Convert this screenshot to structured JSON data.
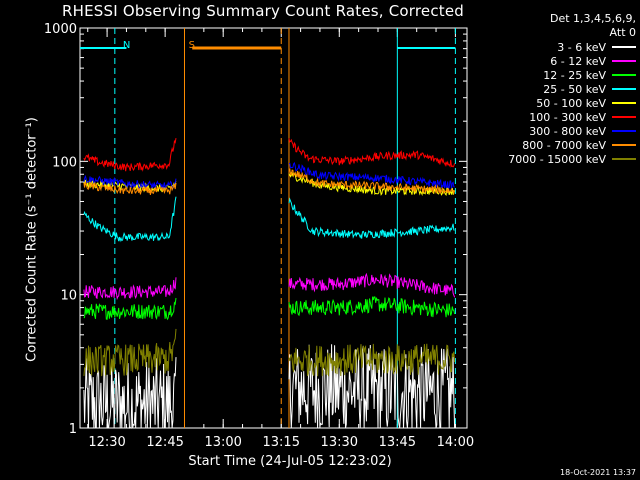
{
  "chart_data": {
    "type": "line",
    "title": "RHESSI Observing Summary Count Rates, Corrected",
    "xlabel": "Start Time (24-Jul-05 12:23:02)",
    "ylabel": "Corrected Count Rate (s⁻¹ detector⁻¹)",
    "yscale": "log",
    "ylim": [
      1,
      1000
    ],
    "xlim": [
      "12:23",
      "14:03"
    ],
    "x_ticks": [
      "12:30",
      "12:45",
      "13:00",
      "13:15",
      "13:30",
      "13:45",
      "14:00"
    ],
    "y_ticks": [
      "1",
      "10",
      "100",
      "1000"
    ],
    "legend_header": [
      "Det 1,3,4,5,6,9,",
      "Att 0"
    ],
    "legend_position": "top-right, outside plot",
    "timestamp": "18-Oct-2021 13:37",
    "flags": [
      {
        "label": "N",
        "color": "#00ffff",
        "x": "12:32"
      },
      {
        "label": "S",
        "color": "#ff8c00",
        "x": "12:49"
      }
    ],
    "flag_bars": [
      {
        "color": "#00ffff",
        "start": "12:23",
        "end": "12:35"
      },
      {
        "color": "#ff8c00",
        "start": "12:52",
        "end": "13:15"
      },
      {
        "color": "#00ffff",
        "start": "13:45",
        "end": "14:00"
      }
    ],
    "vlines": [
      {
        "x": "12:32",
        "color": "#00ffff",
        "dashed": true
      },
      {
        "x": "12:50",
        "color": "#ff8c00",
        "dashed": false
      },
      {
        "x": "13:15",
        "color": "#ff8c00",
        "dashed": true
      },
      {
        "x": "13:17",
        "color": "#ff8c00",
        "dashed": false
      },
      {
        "x": "13:45",
        "color": "#00ffff",
        "dashed": false
      },
      {
        "x": "14:00",
        "color": "#00ffff",
        "dashed": true
      }
    ],
    "data_gap": [
      "12:48",
      "13:17"
    ],
    "series": [
      {
        "name": "3 - 6 keV",
        "color": "#ffffff",
        "x": [
          "12:24",
          "12:46",
          "13:17",
          "14:00"
        ],
        "y": [
          1.5,
          1.5,
          2.0,
          1.8
        ]
      },
      {
        "name": "6 - 12 keV",
        "color": "#ff00ff",
        "x": [
          "12:24",
          "12:35",
          "12:46",
          "12:48",
          "13:17",
          "13:30",
          "13:40",
          "14:00"
        ],
        "y": [
          10.5,
          10.5,
          10.5,
          13,
          12,
          12,
          13,
          10.5
        ]
      },
      {
        "name": "12 - 25 keV",
        "color": "#00ff00",
        "x": [
          "12:24",
          "12:35",
          "12:46",
          "12:48",
          "13:17",
          "13:30",
          "13:40",
          "14:00"
        ],
        "y": [
          7.5,
          7.5,
          7.5,
          9,
          8,
          8,
          8.5,
          7.5
        ]
      },
      {
        "name": "25 - 50 keV",
        "color": "#00ffff",
        "x": [
          "12:24",
          "12:28",
          "12:33",
          "12:46",
          "12:48",
          "13:17",
          "13:23",
          "13:35",
          "13:50",
          "14:00"
        ],
        "y": [
          40,
          32,
          27,
          27,
          55,
          50,
          30,
          28,
          30,
          32
        ]
      },
      {
        "name": "50 - 100 keV",
        "color": "#ffff00",
        "x": [
          "12:24",
          "12:46",
          "12:48",
          "13:17",
          "13:25",
          "13:40",
          "14:00"
        ],
        "y": [
          68,
          62,
          70,
          80,
          66,
          60,
          60
        ]
      },
      {
        "name": "100 - 300 keV",
        "color": "#ff0000",
        "x": [
          "12:24",
          "12:28",
          "12:35",
          "12:46",
          "12:48",
          "13:17",
          "13:22",
          "13:30",
          "13:42",
          "13:50",
          "14:00"
        ],
        "y": [
          108,
          98,
          90,
          95,
          160,
          140,
          105,
          100,
          110,
          112,
          95
        ]
      },
      {
        "name": "300 - 800 keV",
        "color": "#0000ff",
        "x": [
          "12:24",
          "12:35",
          "12:46",
          "12:48",
          "13:17",
          "13:25",
          "13:40",
          "14:00"
        ],
        "y": [
          74,
          68,
          65,
          70,
          95,
          78,
          75,
          66
        ]
      },
      {
        "name": "800 - 7000 keV",
        "color": "#ff8c00",
        "x": [
          "12:24",
          "12:35",
          "12:46",
          "12:48",
          "13:17",
          "13:25",
          "13:40",
          "14:00"
        ],
        "y": [
          66,
          60,
          60,
          65,
          85,
          68,
          65,
          60
        ]
      },
      {
        "name": "7000 - 15000 keV",
        "color": "#808000",
        "x": [
          "12:24",
          "12:46",
          "12:48",
          "13:17",
          "14:00"
        ],
        "y": [
          3.2,
          3.3,
          4.5,
          3.2,
          3.3
        ]
      }
    ]
  }
}
